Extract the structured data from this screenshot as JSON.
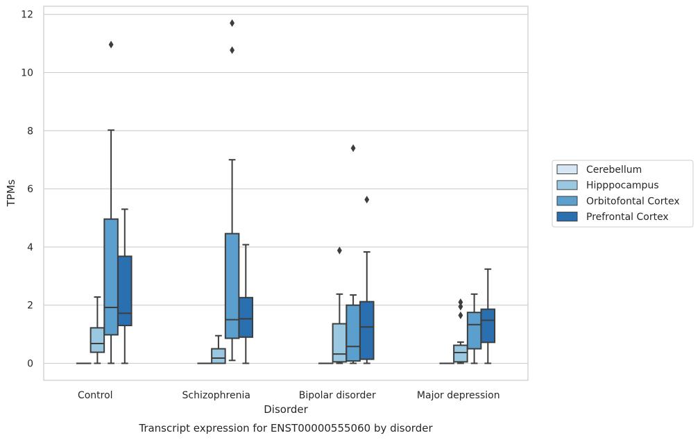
{
  "chart_data": {
    "type": "box",
    "caption": "Transcript expression for ENST00000555060 by disorder",
    "xlabel": "Disorder",
    "ylabel": "TPMs",
    "ylim": [
      -0.55,
      12.25
    ],
    "yticks": [
      0,
      2,
      4,
      6,
      8,
      10,
      12
    ],
    "grid": true,
    "legend_position": "right",
    "categories": [
      "Control",
      "Schizophrenia",
      "Bipolar disorder",
      "Major depression"
    ],
    "series": [
      {
        "name": "Cerebellum",
        "color": "#d6e6f4",
        "boxes": [
          {
            "whislo": 0,
            "q1": 0,
            "med": 0,
            "q3": 0,
            "whishi": 0,
            "fliers": []
          },
          {
            "whislo": 0,
            "q1": 0,
            "med": 0,
            "q3": 0,
            "whishi": 0,
            "fliers": []
          },
          {
            "whislo": 0,
            "q1": 0,
            "med": 0,
            "q3": 0,
            "whishi": 0,
            "fliers": []
          },
          {
            "whislo": 0,
            "q1": 0,
            "med": 0,
            "q3": 0,
            "whishi": 0,
            "fliers": []
          }
        ]
      },
      {
        "name": "Hipppocampus",
        "color": "#9ac8e0",
        "boxes": [
          {
            "whislo": 0,
            "q1": 0.38,
            "med": 0.68,
            "q3": 1.22,
            "whishi": 2.28,
            "fliers": []
          },
          {
            "whislo": 0,
            "q1": 0.0,
            "med": 0.18,
            "q3": 0.5,
            "whishi": 0.95,
            "fliers": []
          },
          {
            "whislo": 0,
            "q1": 0.05,
            "med": 0.32,
            "q3": 1.36,
            "whishi": 2.38,
            "fliers": [
              3.88
            ]
          },
          {
            "whislo": 0,
            "q1": 0.05,
            "med": 0.37,
            "q3": 0.62,
            "whishi": 0.73,
            "fliers": [
              1.65,
              1.95,
              2.1
            ]
          }
        ]
      },
      {
        "name": "Orbitofontal Cortex",
        "color": "#5a9fcd",
        "boxes": [
          {
            "whislo": 0,
            "q1": 0.98,
            "med": 1.92,
            "q3": 4.96,
            "whishi": 8.02,
            "fliers": [
              10.96
            ]
          },
          {
            "whislo": 0.1,
            "q1": 0.86,
            "med": 1.5,
            "q3": 4.46,
            "whishi": 7.0,
            "fliers": [
              10.77,
              11.7
            ]
          },
          {
            "whislo": 0,
            "q1": 0.08,
            "med": 0.58,
            "q3": 2.0,
            "whishi": 2.35,
            "fliers": [
              7.4
            ]
          },
          {
            "whislo": 0,
            "q1": 0.5,
            "med": 1.33,
            "q3": 1.75,
            "whishi": 2.38,
            "fliers": []
          }
        ]
      },
      {
        "name": "Prefrontal Cortex",
        "color": "#2a70b0",
        "boxes": [
          {
            "whislo": 0,
            "q1": 1.3,
            "med": 1.72,
            "q3": 3.68,
            "whishi": 5.3,
            "fliers": []
          },
          {
            "whislo": 0,
            "q1": 0.9,
            "med": 1.53,
            "q3": 2.26,
            "whishi": 4.08,
            "fliers": []
          },
          {
            "whislo": 0,
            "q1": 0.14,
            "med": 1.25,
            "q3": 2.12,
            "whishi": 3.83,
            "fliers": [
              5.63
            ]
          },
          {
            "whislo": 0,
            "q1": 0.72,
            "med": 1.48,
            "q3": 1.86,
            "whishi": 3.24,
            "fliers": []
          }
        ]
      }
    ]
  }
}
